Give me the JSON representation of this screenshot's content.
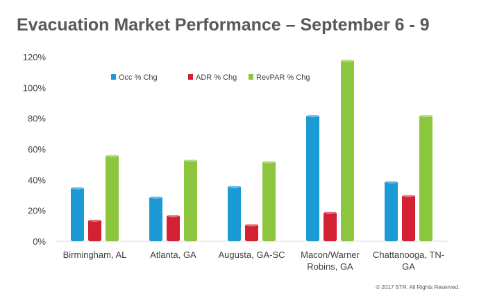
{
  "title": "Evacuation Market Performance – September 6 - 9",
  "footer": "© 2017 STR. All Rights Reserved.",
  "colors": {
    "occ": "#1b9ad6",
    "adr": "#d32033",
    "revpar": "#8cc63f",
    "axis_text": "#404040",
    "axis_line": "#d9d9d9"
  },
  "chart_data": {
    "type": "bar",
    "categories": [
      [
        "Birmingham, AL"
      ],
      [
        "Atlanta, GA"
      ],
      [
        "Augusta, GA-SC"
      ],
      [
        "Macon/Warner",
        "Robins, GA"
      ],
      [
        "Chattanooga, TN-",
        "GA"
      ]
    ],
    "series": [
      {
        "name": "Occ % Chg",
        "values": [
          35,
          29,
          36,
          82,
          39
        ]
      },
      {
        "name": "ADR % Chg",
        "values": [
          14,
          17,
          11,
          19,
          30
        ]
      },
      {
        "name": "RevPAR % Chg",
        "values": [
          56,
          53,
          52,
          118,
          82
        ]
      }
    ],
    "ylim": [
      0,
      120
    ],
    "yticks": [
      "0%",
      "20%",
      "40%",
      "60%",
      "80%",
      "100%",
      "120%"
    ],
    "ytick_values": [
      0,
      20,
      40,
      60,
      80,
      100,
      120
    ],
    "legend": "top-left",
    "grid": false
  }
}
